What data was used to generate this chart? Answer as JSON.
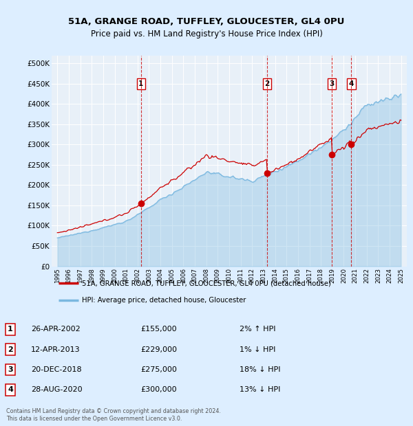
{
  "title1": "51A, GRANGE ROAD, TUFFLEY, GLOUCESTER, GL4 0PU",
  "title2": "Price paid vs. HM Land Registry's House Price Index (HPI)",
  "legend_label1": "51A, GRANGE ROAD, TUFFLEY, GLOUCESTER, GL4 0PU (detached house)",
  "legend_label2": "HPI: Average price, detached house, Gloucester",
  "footer1": "Contains HM Land Registry data © Crown copyright and database right 2024.",
  "footer2": "This data is licensed under the Open Government Licence v3.0.",
  "transactions": [
    {
      "num": 1,
      "date": "26-APR-2002",
      "price": 155000,
      "pct": "2%",
      "dir": "↑",
      "year_x": 2002.3
    },
    {
      "num": 2,
      "date": "12-APR-2013",
      "price": 229000,
      "pct": "1%",
      "dir": "↓",
      "year_x": 2013.3
    },
    {
      "num": 3,
      "date": "20-DEC-2018",
      "price": 275000,
      "pct": "18%",
      "dir": "↓",
      "year_x": 2018.95
    },
    {
      "num": 4,
      "date": "28-AUG-2020",
      "price": 300000,
      "pct": "13%",
      "dir": "↓",
      "year_x": 2020.65
    }
  ],
  "hpi_color": "#7ab8e0",
  "price_color": "#cc0000",
  "background_color": "#ddeeff",
  "plot_bg": "#e8f0f8",
  "grid_color": "#ffffff",
  "annotation_box_color": "#cc0000",
  "dashed_line_color": "#cc0000",
  "ylim": [
    0,
    520000
  ],
  "yticks": [
    0,
    50000,
    100000,
    150000,
    200000,
    250000,
    300000,
    350000,
    400000,
    450000,
    500000
  ],
  "ytick_labels": [
    "£0",
    "£50K",
    "£100K",
    "£150K",
    "£200K",
    "£250K",
    "£300K",
    "£350K",
    "£400K",
    "£450K",
    "£500K"
  ],
  "xlim_start": 1994.5,
  "xlim_end": 2025.5
}
